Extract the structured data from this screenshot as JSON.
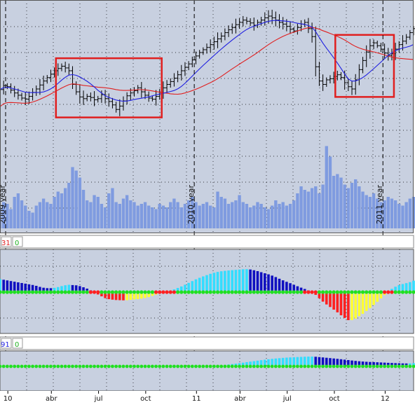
{
  "colors": {
    "background": "#c8d0e0",
    "grid": "#000000",
    "bar": "#000000",
    "sma_fast": "#1f1fe0",
    "sma_slow": "#e01f1f",
    "volume": "#7f9be0",
    "highlight": "#e01f1f",
    "hist_pos_light": "#33ddff",
    "hist_pos_dark": "#1010c0",
    "hist_neg_red": "#ff2020",
    "hist_neg_yellow": "#ffff30",
    "dot_green": "#20e020",
    "dot_red": "#ff2020"
  },
  "chart_data": [
    {
      "type": "ohlc",
      "description_units": "weekly bars",
      "year_labels": [
        "2009 year",
        "2010 year",
        "2011 year"
      ],
      "year_dividers_week": [
        0,
        52,
        104
      ],
      "price_range": [
        18,
        42
      ],
      "weekly_close": [
        27.5,
        28.2,
        28.0,
        27.4,
        26.9,
        26.5,
        26.0,
        25.8,
        26.3,
        27.0,
        27.6,
        28.3,
        29.0,
        29.6,
        30.2,
        30.8,
        31.2,
        31.6,
        31.3,
        30.8,
        28.4,
        27.1,
        26.2,
        25.9,
        26.3,
        26.1,
        25.7,
        25.9,
        26.6,
        25.9,
        25.4,
        24.8,
        24.0,
        24.6,
        25.5,
        26.4,
        26.9,
        27.3,
        27.8,
        27.1,
        26.5,
        26.0,
        25.8,
        26.3,
        27.0,
        27.8,
        28.4,
        28.9,
        29.5,
        30.1,
        30.8,
        31.4,
        32.0,
        32.7,
        33.4,
        34.0,
        34.5,
        34.9,
        35.4,
        35.9,
        36.4,
        36.9,
        37.5,
        38.0,
        38.4,
        38.9,
        39.3,
        39.7,
        39.5,
        39.2,
        38.8,
        39.3,
        39.7,
        40.1,
        40.4,
        40.1,
        39.7,
        39.3,
        39.0,
        38.6,
        38.1,
        37.8,
        38.4,
        39.0,
        39.3,
        38.2,
        36.8,
        31.5,
        29.0,
        28.4,
        29.2,
        29.4,
        29.8,
        30.1,
        29.6,
        28.7,
        28.0,
        27.6,
        29.2,
        31.0,
        32.6,
        34.1,
        35.2,
        35.7,
        35.2,
        34.6,
        33.9,
        33.5,
        33.8,
        34.6,
        35.4,
        36.0,
        36.7,
        37.5,
        38.2
      ],
      "sma_fast": {
        "name": "",
        "period_weeks": 10
      },
      "sma_slow": {
        "name": "",
        "period_weeks": 30
      },
      "weekly_volume": [
        24,
        30,
        28,
        22,
        36,
        40,
        32,
        26,
        20,
        18,
        26,
        30,
        34,
        30,
        28,
        36,
        42,
        40,
        46,
        52,
        70,
        66,
        58,
        44,
        32,
        30,
        38,
        36,
        28,
        24,
        40,
        46,
        30,
        28,
        34,
        38,
        32,
        30,
        26,
        28,
        30,
        26,
        24,
        22,
        28,
        26,
        24,
        30,
        34,
        30,
        24,
        28,
        32,
        36,
        30,
        26,
        28,
        30,
        26,
        24,
        42,
        36,
        34,
        28,
        30,
        32,
        38,
        30,
        28,
        24,
        26,
        30,
        28,
        24,
        22,
        26,
        32,
        28,
        30,
        26,
        28,
        32,
        40,
        48,
        44,
        42,
        46,
        48,
        40,
        50,
        94,
        82,
        60,
        62,
        58,
        50,
        46,
        52,
        56,
        48,
        42,
        38,
        36,
        40,
        34,
        30,
        32,
        36,
        34,
        32,
        28,
        26,
        30,
        34,
        36
      ],
      "highlight_boxes_week": [
        [
          16,
          44
        ],
        [
          93,
          108
        ]
      ],
      "x_tick_labels": [
        "10",
        "abr",
        "jul",
        "oct",
        "11",
        "abr",
        "jul",
        "oct",
        "12"
      ]
    },
    {
      "type": "histogram",
      "indicator_counter_red": "31",
      "indicator_counter_green": "0"
    },
    {
      "type": "histogram",
      "indicator_counter_blue": "91",
      "indicator_counter_green": "0"
    }
  ]
}
